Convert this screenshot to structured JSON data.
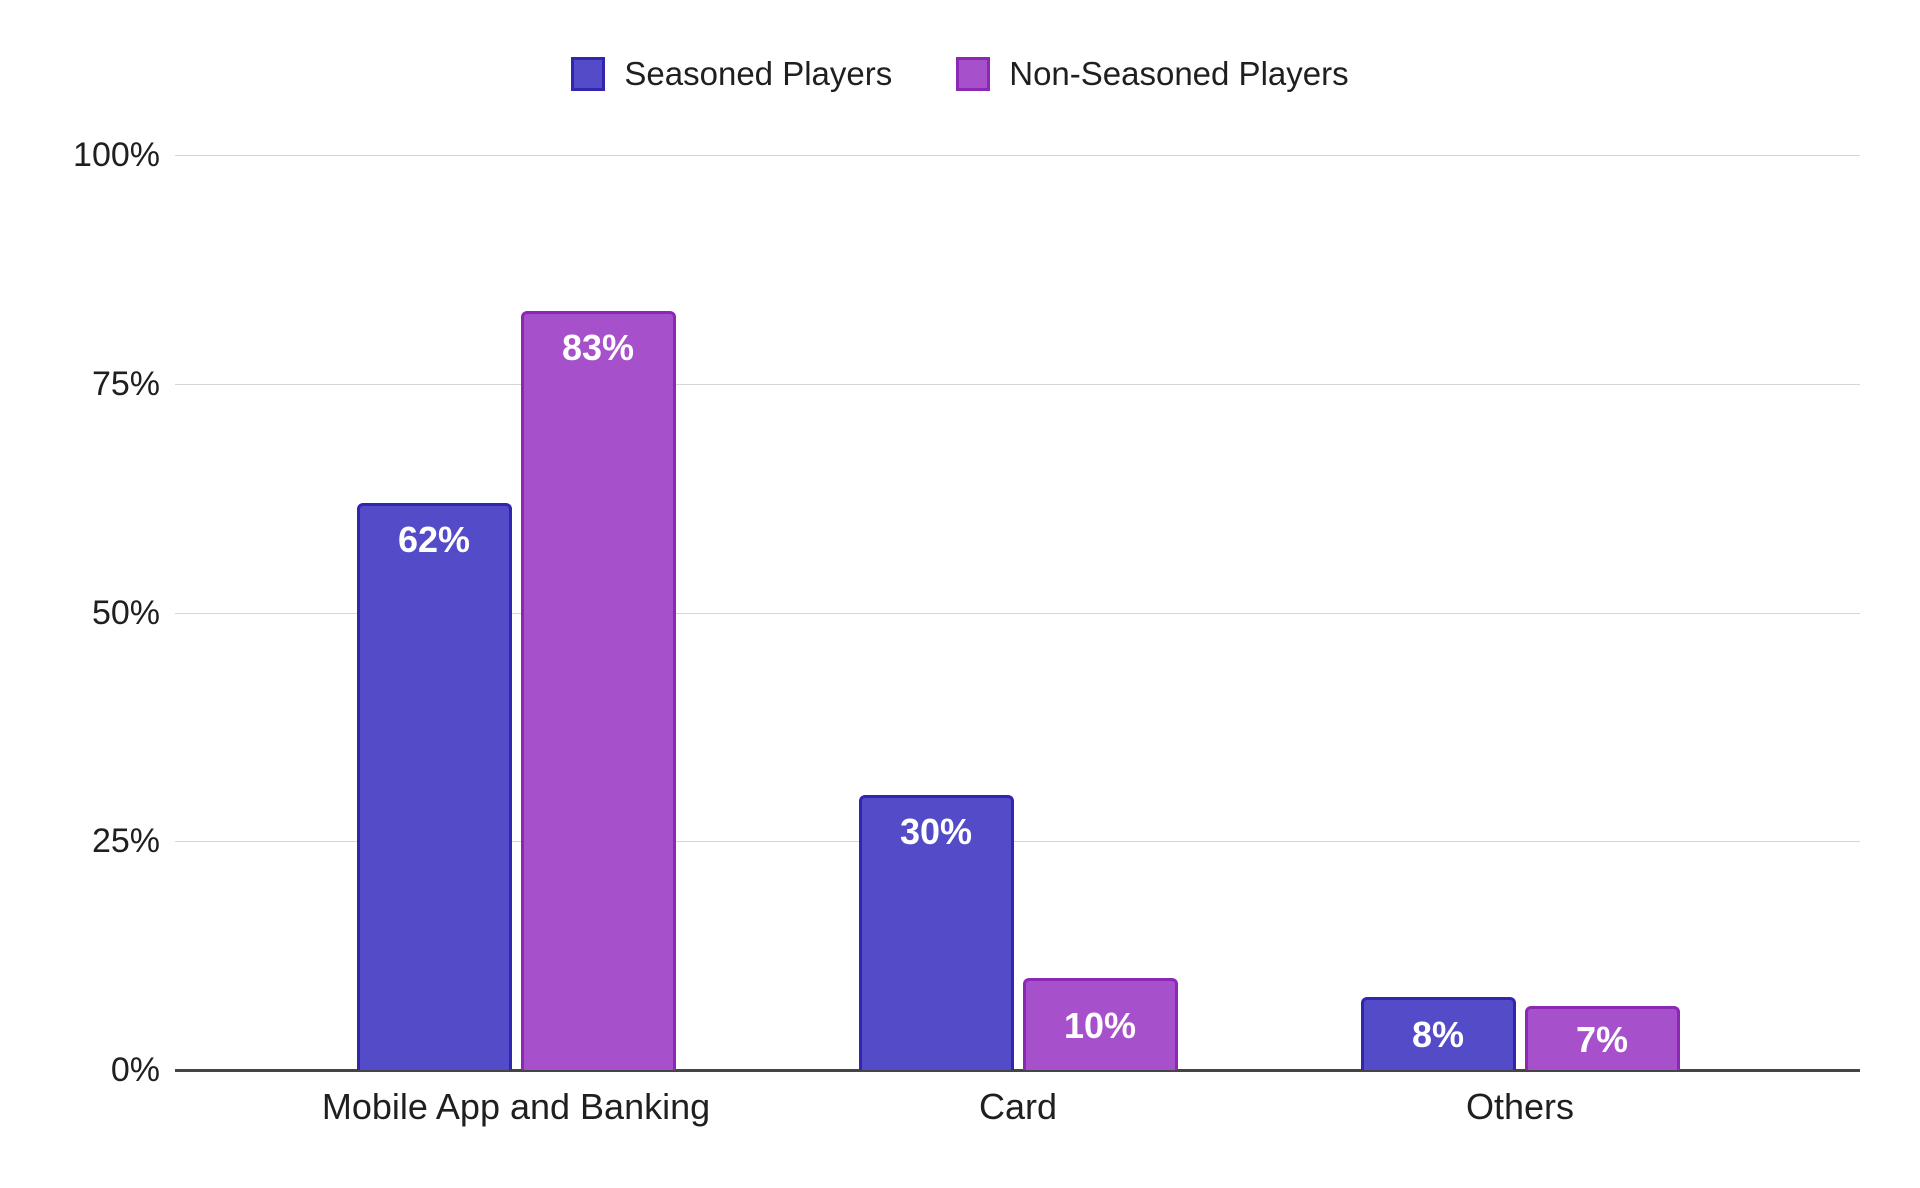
{
  "chart_data": {
    "type": "bar",
    "title": "",
    "categories": [
      "Mobile App and Banking",
      "Card",
      "Others"
    ],
    "series": [
      {
        "name": "Seasoned Players",
        "values": [
          62,
          30,
          8
        ],
        "labels": [
          "62%",
          "30%",
          "8%"
        ],
        "color": "#544bc8",
        "border_color": "#3126ad"
      },
      {
        "name": "Non-Seasoned Players",
        "values": [
          83,
          10,
          7
        ],
        "labels": [
          "83%",
          "10%",
          "7%"
        ],
        "color": "#a651cb",
        "border_color": "#8b29b4"
      }
    ],
    "y_ticks": [
      "0%",
      "25%",
      "50%",
      "75%",
      "100%"
    ],
    "y_tick_values": [
      0,
      25,
      50,
      75,
      100
    ],
    "ylim": [
      0,
      100
    ],
    "legend_position": "top",
    "grid": true,
    "gridline_color": "#d6d6d6",
    "baseline_color": "#454545",
    "value_label_color": "#ffffff",
    "axis_text_color": "#1f1f1f",
    "background": "#ffffff"
  }
}
